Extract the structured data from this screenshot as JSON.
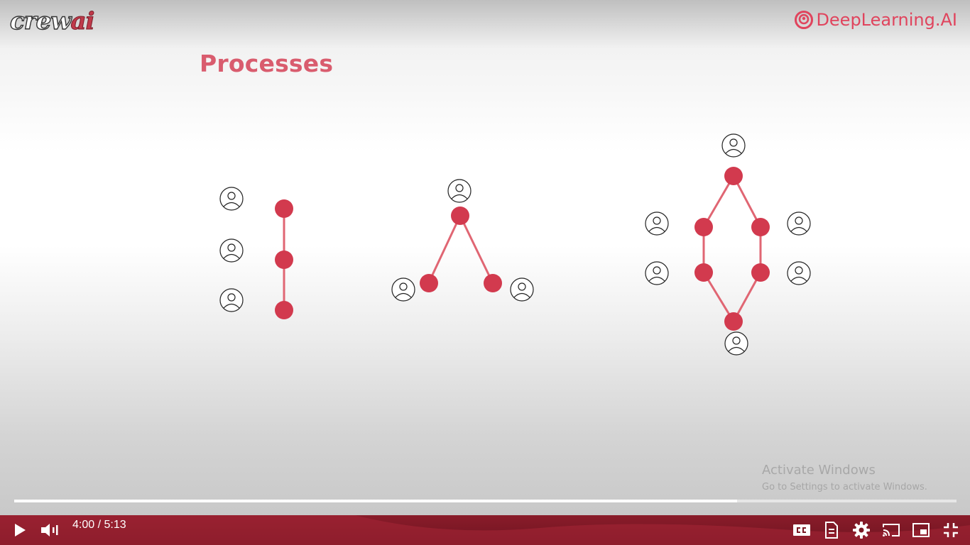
{
  "brand": {
    "crew_logo_main": "crew",
    "crew_logo_accent": "ai",
    "dl_logo_text": "DeepLearning.AI",
    "accent_color": "#d0394f",
    "title_color": "#d95c6e"
  },
  "slide": {
    "title": "Processes"
  },
  "watermark": {
    "line1": "Activate Windows",
    "line2": "Go to Settings to activate Windows."
  },
  "player": {
    "current_time": "4:00",
    "separator": " / ",
    "duration": "5:13",
    "progress_fraction": 0.767,
    "icons": [
      "play-icon",
      "volume-icon",
      "captions-icon",
      "transcript-icon",
      "settings-icon",
      "cast-icon",
      "miniplayer-icon",
      "exit-fullscreen-icon"
    ]
  }
}
